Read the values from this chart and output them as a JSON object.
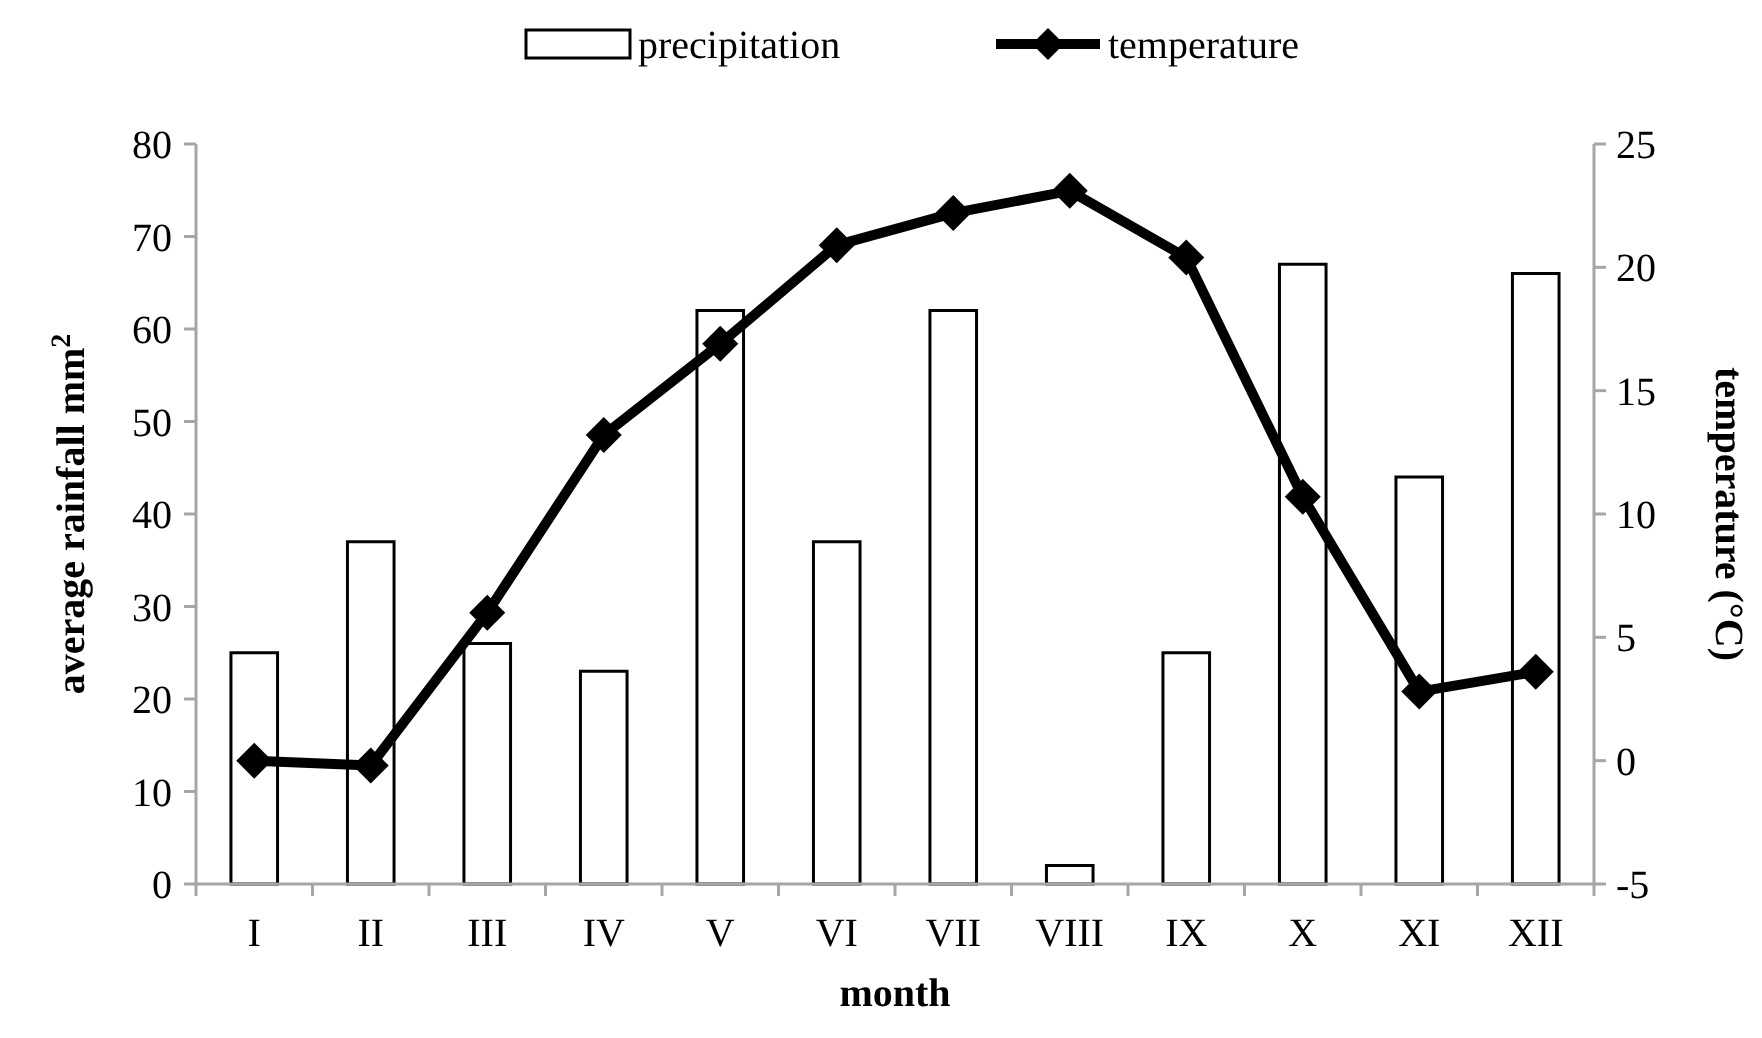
{
  "chart_data": {
    "type": "bar",
    "xlabel": "month",
    "ylabel": "average rainfall mm$^{2}$",
    "y2label": "temperature (°C)",
    "categories": [
      "I",
      "II",
      "III",
      "IV",
      "V",
      "VI",
      "VII",
      "VIII",
      "IX",
      "X",
      "XI",
      "XII"
    ],
    "series": [
      {
        "name": "precipitation",
        "color": "#ffffff",
        "values": [
          25,
          37,
          26,
          23,
          62,
          37,
          62,
          2,
          25,
          67,
          44,
          66
        ]
      },
      {
        "name": "temperature",
        "type": "line",
        "axis": "y2",
        "color": "#000000",
        "marker": "diamond",
        "values": [
          0.0,
          -0.2,
          6.0,
          13.2,
          16.9,
          20.9,
          22.2,
          23.1,
          20.4,
          10.7,
          2.8,
          3.6
        ]
      }
    ],
    "ylim": [
      0,
      80
    ],
    "yticks": [
      0,
      10,
      20,
      30,
      40,
      50,
      60,
      70,
      80
    ],
    "y2lim": [
      -5,
      25
    ],
    "y2ticks": [
      -5,
      0,
      5,
      10,
      15,
      20,
      25
    ],
    "grid": false,
    "legend": "top"
  }
}
